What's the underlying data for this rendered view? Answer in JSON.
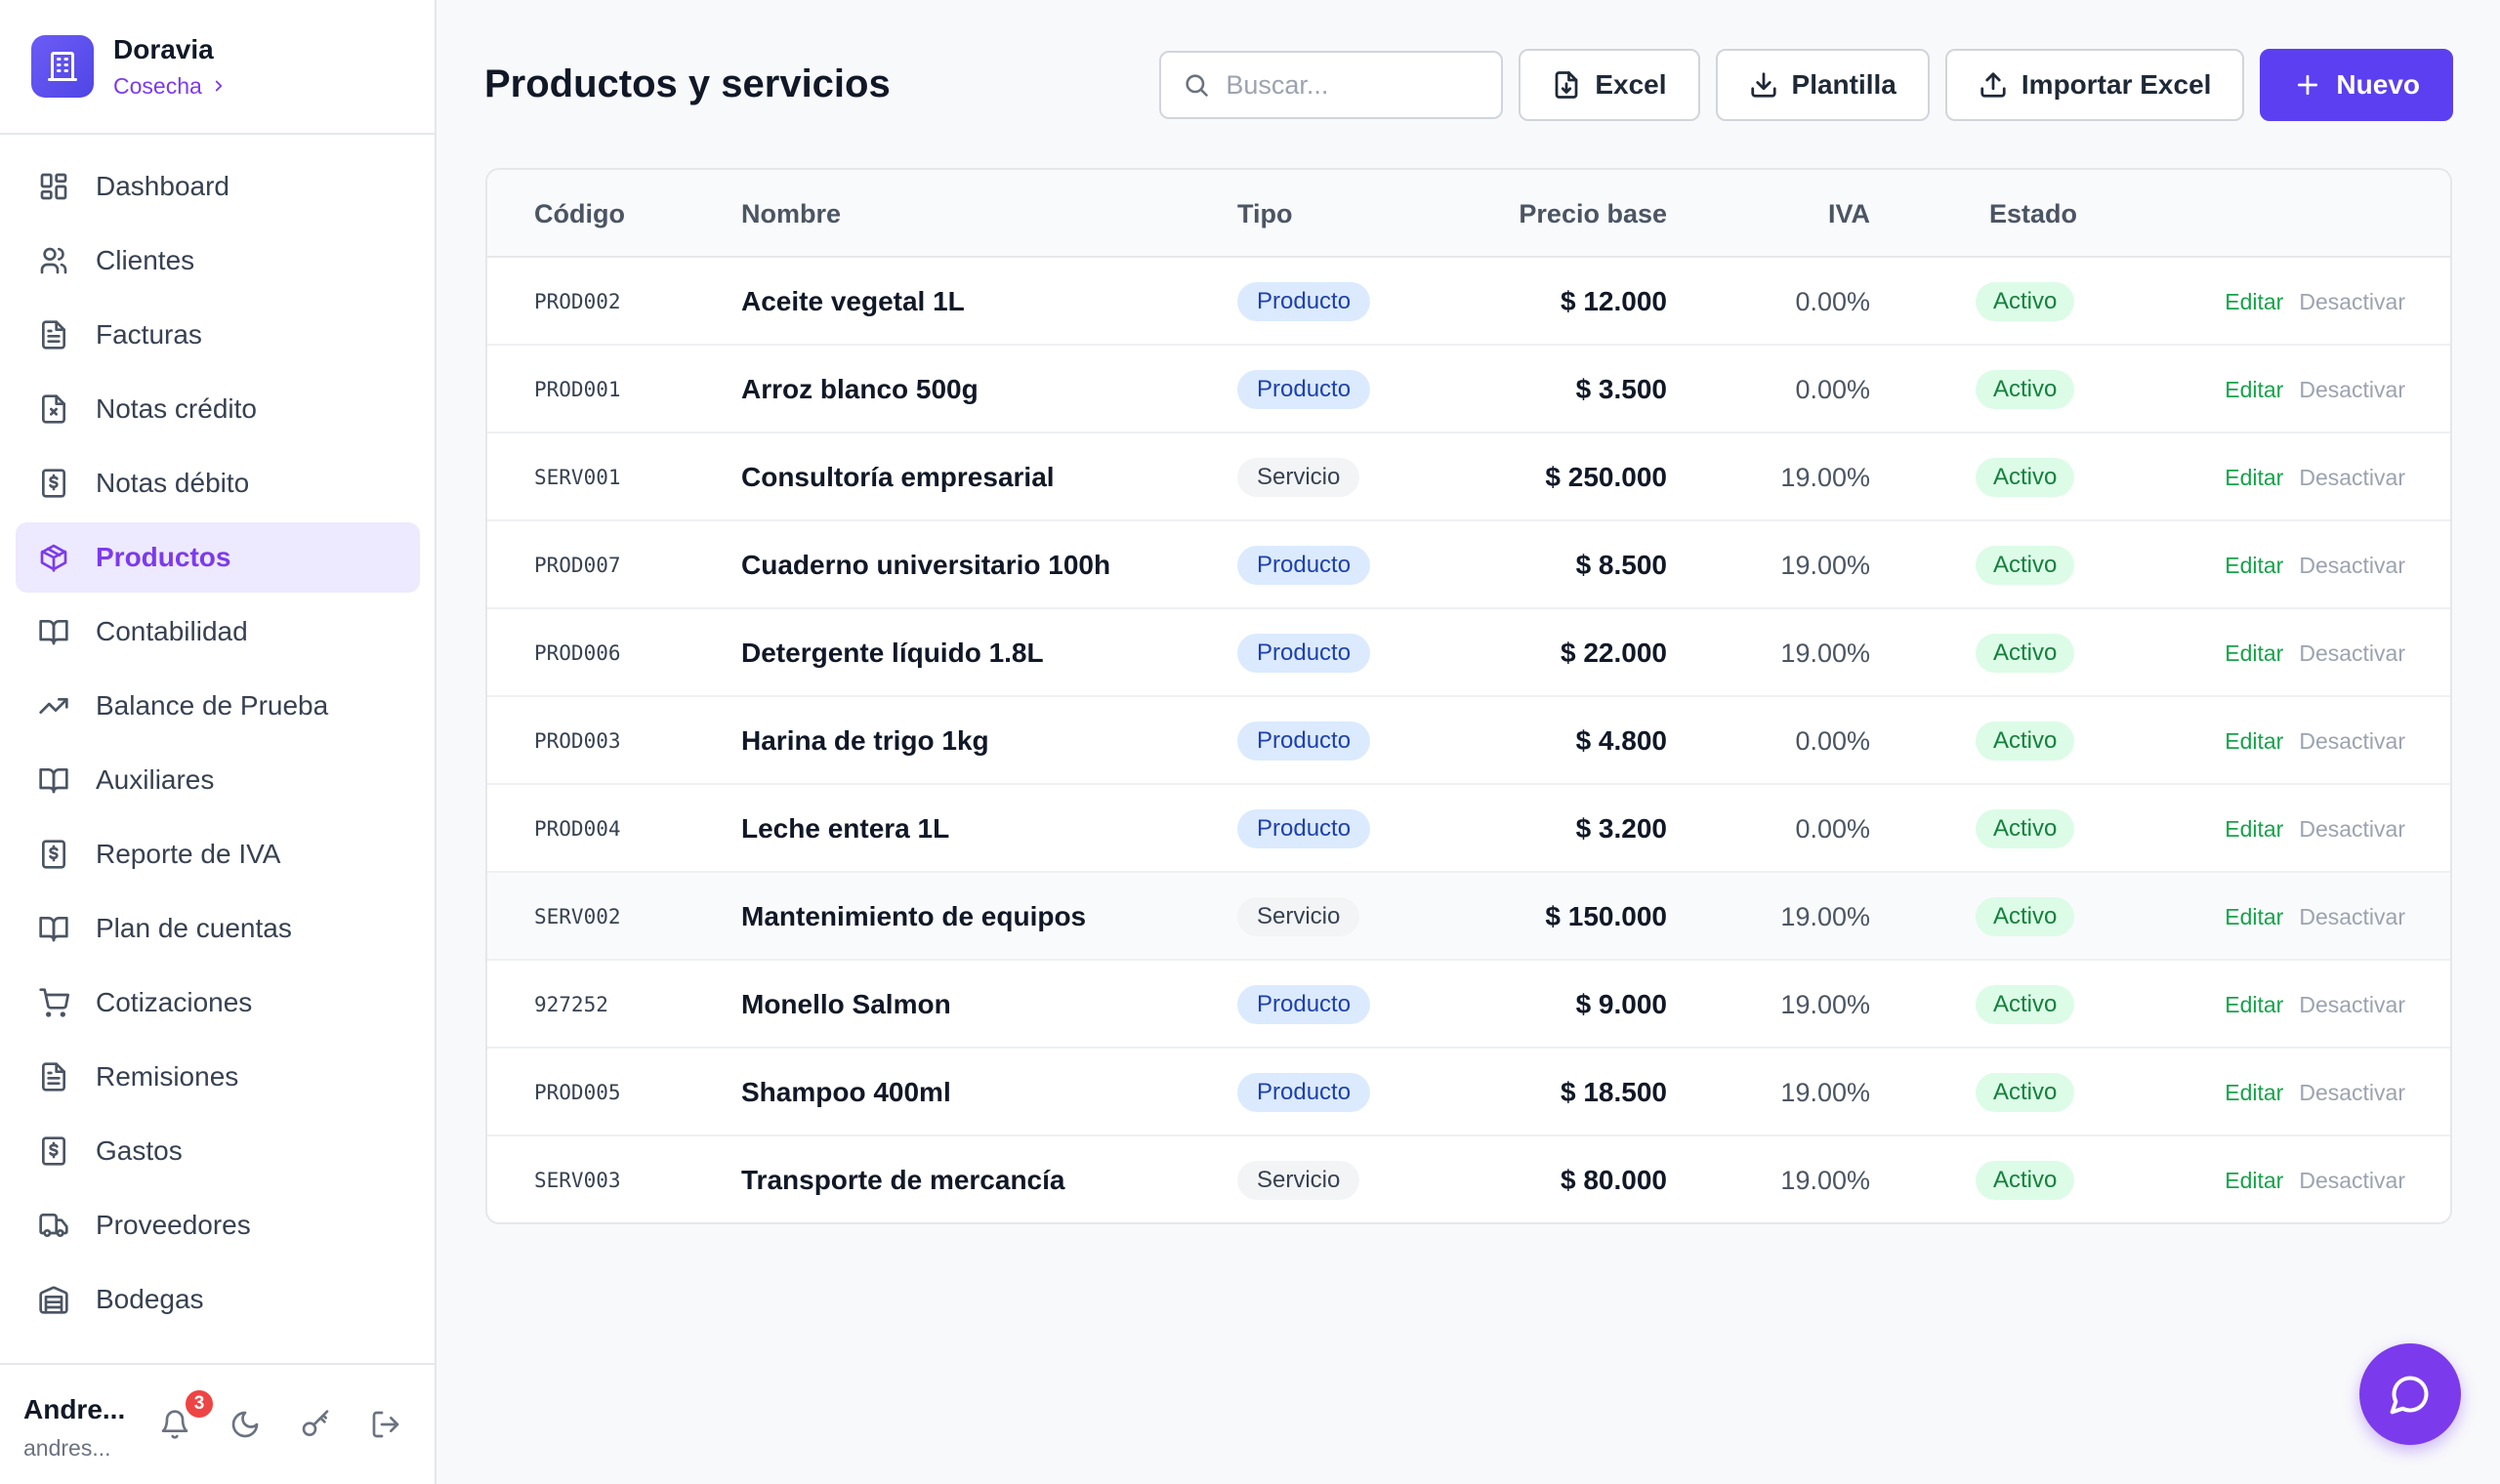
{
  "brand": {
    "name": "Doravia",
    "subtitle": "Cosecha"
  },
  "sidebar": {
    "items": [
      {
        "label": "Dashboard",
        "icon": "dashboard-icon",
        "active": false
      },
      {
        "label": "Clientes",
        "icon": "users-icon",
        "active": false
      },
      {
        "label": "Facturas",
        "icon": "document-icon",
        "active": false
      },
      {
        "label": "Notas crédito",
        "icon": "document-x-icon",
        "active": false
      },
      {
        "label": "Notas débito",
        "icon": "dollar-document-icon",
        "active": false
      },
      {
        "label": "Productos",
        "icon": "box-icon",
        "active": true
      },
      {
        "label": "Contabilidad",
        "icon": "book-icon",
        "active": false
      },
      {
        "label": "Balance de Prueba",
        "icon": "trending-up-icon",
        "active": false
      },
      {
        "label": "Auxiliares",
        "icon": "book-icon",
        "active": false
      },
      {
        "label": "Reporte de IVA",
        "icon": "dollar-document-icon",
        "active": false
      },
      {
        "label": "Plan de cuentas",
        "icon": "book-icon",
        "active": false
      },
      {
        "label": "Cotizaciones",
        "icon": "cart-icon",
        "active": false
      },
      {
        "label": "Remisiones",
        "icon": "document-icon",
        "active": false
      },
      {
        "label": "Gastos",
        "icon": "dollar-document-icon",
        "active": false
      },
      {
        "label": "Proveedores",
        "icon": "truck-icon",
        "active": false
      },
      {
        "label": "Bodegas",
        "icon": "warehouse-icon",
        "active": false
      }
    ]
  },
  "user": {
    "name": "Andre...",
    "email": "andres...",
    "notifications": "3"
  },
  "header": {
    "title": "Productos y servicios",
    "search_placeholder": "Buscar...",
    "excel_label": "Excel",
    "template_label": "Plantilla",
    "import_label": "Importar Excel",
    "new_label": "Nuevo"
  },
  "table": {
    "columns": {
      "code": "Código",
      "name": "Nombre",
      "type": "Tipo",
      "price": "Precio base",
      "iva": "IVA",
      "status": "Estado"
    },
    "edit_label": "Editar",
    "deactivate_label": "Desactivar",
    "rows": [
      {
        "code": "PROD002",
        "name": "Aceite vegetal 1L",
        "type": "Producto",
        "price": "$ 12.000",
        "iva": "0.00%",
        "status": "Activo"
      },
      {
        "code": "PROD001",
        "name": "Arroz blanco 500g",
        "type": "Producto",
        "price": "$ 3.500",
        "iva": "0.00%",
        "status": "Activo"
      },
      {
        "code": "SERV001",
        "name": "Consultoría empresarial",
        "type": "Servicio",
        "price": "$ 250.000",
        "iva": "19.00%",
        "status": "Activo"
      },
      {
        "code": "PROD007",
        "name": "Cuaderno universitario 100h",
        "type": "Producto",
        "price": "$ 8.500",
        "iva": "19.00%",
        "status": "Activo"
      },
      {
        "code": "PROD006",
        "name": "Detergente líquido 1.8L",
        "type": "Producto",
        "price": "$ 22.000",
        "iva": "19.00%",
        "status": "Activo"
      },
      {
        "code": "PROD003",
        "name": "Harina de trigo 1kg",
        "type": "Producto",
        "price": "$ 4.800",
        "iva": "0.00%",
        "status": "Activo"
      },
      {
        "code": "PROD004",
        "name": "Leche entera 1L",
        "type": "Producto",
        "price": "$ 3.200",
        "iva": "0.00%",
        "status": "Activo"
      },
      {
        "code": "SERV002",
        "name": "Mantenimiento de equipos",
        "type": "Servicio",
        "price": "$ 150.000",
        "iva": "19.00%",
        "status": "Activo"
      },
      {
        "code": "927252",
        "name": "Monello Salmon",
        "type": "Producto",
        "price": "$ 9.000",
        "iva": "19.00%",
        "status": "Activo"
      },
      {
        "code": "PROD005",
        "name": "Shampoo 400ml",
        "type": "Producto",
        "price": "$ 18.500",
        "iva": "19.00%",
        "status": "Activo"
      },
      {
        "code": "SERV003",
        "name": "Transporte de mercancía",
        "type": "Servicio",
        "price": "$ 80.000",
        "iva": "19.00%",
        "status": "Activo"
      }
    ]
  }
}
